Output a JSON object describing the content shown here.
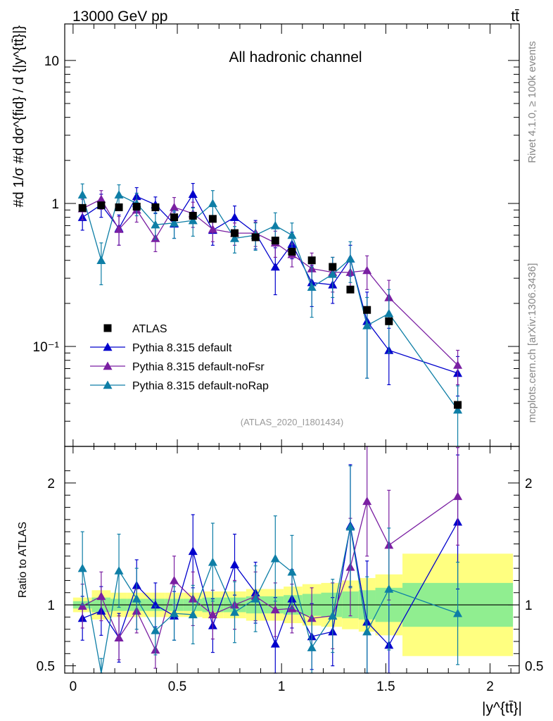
{
  "header": {
    "energy_label": "13000 GeV pp",
    "process_label": "tt̄",
    "channel_label": "All hadronic channel",
    "analysis_id": "(ATLAS_2020_I1801434)",
    "side_rivet": "Rivet 4.1.0, ≥ 100k events",
    "side_site": "mcplots.cern.ch [arXiv:1306.3436]"
  },
  "chart_data": {
    "type": "scatter",
    "main": {
      "ylabel": "#d 1/σ #d dσ^{fid} / d {|y^{tt̄}|}",
      "yscale": "log",
      "ylim": [
        0.02,
        18
      ],
      "ytick_labels": [
        "10",
        "1",
        "10⁻¹"
      ],
      "ytick_values": [
        10,
        1,
        0.1
      ]
    },
    "ratio": {
      "ylabel": "Ratio to ATLAS",
      "ylim": [
        0.44,
        2.3
      ],
      "ytick_labels": [
        "0.5",
        "1",
        "2"
      ],
      "ytick_values": [
        0.5,
        1,
        2
      ]
    },
    "xlabel": "|y^{tt̄}|",
    "xlim": [
      -0.04,
      2.14
    ],
    "xtick_labels": [
      "0",
      "0.5",
      "1",
      "1.5",
      "2"
    ],
    "xtick_values": [
      0,
      0.5,
      1,
      1.5,
      2
    ],
    "x": [
      0.045,
      0.135,
      0.22,
      0.305,
      0.395,
      0.485,
      0.575,
      0.67,
      0.775,
      0.875,
      0.97,
      1.05,
      1.145,
      1.245,
      1.33,
      1.41,
      1.515,
      1.845
    ],
    "bins": [
      0,
      0.09,
      0.18,
      0.26,
      0.35,
      0.44,
      0.53,
      0.62,
      0.72,
      0.83,
      0.92,
      1.01,
      1.1,
      1.19,
      1.29,
      1.37,
      1.45,
      1.58,
      2.11
    ],
    "data": {
      "name": "ATLAS",
      "values": [
        0.93,
        0.97,
        0.94,
        0.95,
        0.94,
        0.8,
        0.82,
        0.78,
        0.62,
        0.58,
        0.55,
        0.46,
        0.4,
        0.36,
        0.25,
        0.18,
        0.15,
        0.039
      ],
      "band_stat": [
        0.03,
        0.06,
        0.05,
        0.05,
        0.05,
        0.05,
        0.05,
        0.06,
        0.06,
        0.07,
        0.07,
        0.08,
        0.09,
        0.1,
        0.11,
        0.12,
        0.14,
        0.18
      ],
      "band_total": [
        0.06,
        0.12,
        0.1,
        0.1,
        0.1,
        0.1,
        0.1,
        0.11,
        0.11,
        0.13,
        0.13,
        0.15,
        0.17,
        0.18,
        0.2,
        0.22,
        0.25,
        0.42
      ]
    },
    "series": [
      {
        "name": "Pythia 8.315 default",
        "color": "#0000cc",
        "values": [
          0.8,
          0.98,
          0.67,
          1.12,
          0.98,
          0.72,
          1.16,
          0.65,
          0.8,
          0.62,
          0.36,
          0.52,
          0.28,
          0.27,
          0.41,
          0.15,
          0.094,
          0.065
        ],
        "ratio": [
          0.89,
          0.95,
          0.73,
          1.16,
          1.0,
          0.91,
          1.44,
          0.83,
          1.33,
          1.1,
          0.68,
          1.05,
          0.74,
          0.78,
          1.65,
          0.86,
          0.67,
          1.68
        ],
        "err": [
          0.15,
          0.18,
          0.16,
          0.17,
          0.13,
          0.15,
          0.22,
          0.14,
          0.16,
          0.14,
          0.13,
          0.11,
          0.09,
          0.07,
          0.1,
          0.09,
          0.04,
          0.02
        ],
        "ratio_err": [
          0.18,
          0.2,
          0.2,
          0.21,
          0.18,
          0.2,
          0.3,
          0.22,
          0.25,
          0.25,
          0.38,
          0.24,
          0.27,
          0.28,
          0.5,
          0.5,
          0.33,
          0.55
        ]
      },
      {
        "name": "Pythia 8.315 default-noFsr",
        "color": "#7a1fa2",
        "values": [
          0.92,
          1.07,
          0.66,
          0.9,
          0.57,
          0.94,
          0.85,
          0.66,
          0.62,
          0.62,
          0.53,
          0.44,
          0.35,
          0.33,
          0.33,
          0.34,
          0.22,
          0.074
        ],
        "ratio": [
          0.99,
          1.07,
          0.73,
          0.95,
          0.63,
          1.2,
          1.05,
          0.92,
          1.0,
          1.07,
          0.96,
          0.97,
          0.89,
          0.91,
          1.31,
          1.85,
          1.49,
          1.89
        ],
        "err": [
          0.15,
          0.16,
          0.15,
          0.16,
          0.11,
          0.16,
          0.17,
          0.12,
          0.11,
          0.12,
          0.11,
          0.08,
          0.1,
          0.09,
          0.09,
          0.09,
          0.07,
          0.02
        ],
        "ratio_err": [
          0.18,
          0.2,
          0.18,
          0.18,
          0.15,
          0.2,
          0.22,
          0.2,
          0.2,
          0.2,
          0.22,
          0.2,
          0.25,
          0.27,
          0.4,
          0.45,
          0.45,
          0.4
        ]
      },
      {
        "name": "Pythia 8.315 default-noRap",
        "color": "#0e7ea6",
        "values": [
          1.15,
          0.4,
          1.15,
          1.0,
          0.71,
          0.73,
          0.76,
          1.0,
          0.57,
          0.6,
          0.7,
          0.6,
          0.26,
          0.32,
          0.41,
          0.14,
          0.17,
          0.036
        ],
        "ratio": [
          1.3,
          0.41,
          1.28,
          1.05,
          0.79,
          0.93,
          0.92,
          1.35,
          0.94,
          1.05,
          1.38,
          1.27,
          0.65,
          0.91,
          1.64,
          0.78,
          1.13,
          0.93
        ],
        "err": [
          0.22,
          0.13,
          0.2,
          0.18,
          0.15,
          0.16,
          0.17,
          0.23,
          0.12,
          0.13,
          0.16,
          0.13,
          0.1,
          0.1,
          0.13,
          0.08,
          0.08,
          0.017
        ],
        "ratio_err": [
          0.3,
          0.15,
          0.3,
          0.25,
          0.2,
          0.22,
          0.24,
          0.32,
          0.25,
          0.27,
          0.35,
          0.3,
          0.25,
          0.3,
          0.5,
          0.45,
          0.5,
          0.42
        ]
      }
    ],
    "legend_position": "lower-left",
    "band_colors": {
      "stat": "#90ee90",
      "total": "#ffff80"
    }
  }
}
